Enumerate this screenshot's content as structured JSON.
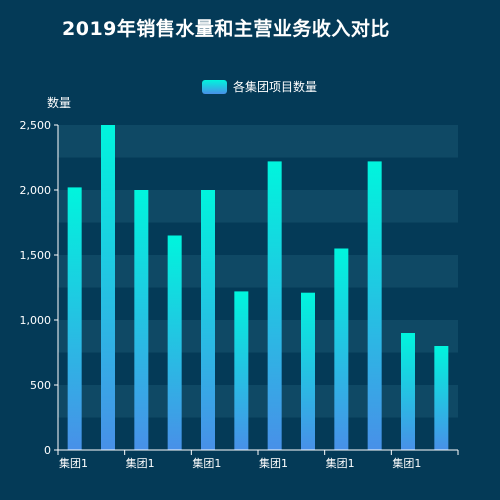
{
  "title": "2019年销售水量和主营业务收入对比",
  "legend": {
    "label": "各集团项目数量"
  },
  "colors": {
    "background": "#043a57",
    "band": "#0f4965",
    "bar_top": "#00f5dd",
    "bar_bottom": "#4890e8",
    "axis": "#ffffff"
  },
  "chart_data": {
    "type": "bar",
    "ylabel": "数量",
    "ylim": [
      0,
      2500
    ],
    "yticks": [
      "0",
      "500",
      "1,000",
      "1,500",
      "2,000",
      "2,500"
    ],
    "categories": [
      "集团1",
      "集团1",
      "集团1",
      "集团1",
      "集团1",
      "集团1",
      "集团1",
      "集团1",
      "集团1",
      "集团1",
      "集团1",
      "集团1"
    ],
    "visible_category_labels": [
      0,
      2,
      4,
      6,
      8,
      10
    ],
    "series": [
      {
        "name": "各集团项目数量",
        "values": [
          2020,
          2500,
          2000,
          1650,
          2000,
          1220,
          2220,
          1210,
          1550,
          2220,
          900,
          800
        ]
      }
    ],
    "grid": "alternating horizontal bands",
    "legend_position": "top-center"
  }
}
